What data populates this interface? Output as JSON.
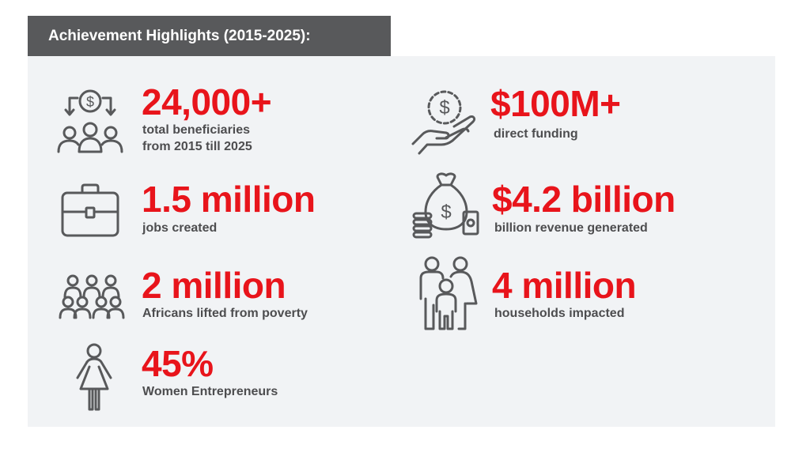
{
  "header": {
    "title": "Achievement Highlights (2015-2025):"
  },
  "stats": {
    "beneficiaries": {
      "value": "24,000+",
      "label_line1": "total beneficiaries",
      "label_line2": "from 2015 till 2025",
      "icon": "people-money-icon"
    },
    "funding": {
      "value": "$100M+",
      "label": "direct funding",
      "icon": "hand-coin-icon"
    },
    "jobs": {
      "value": "1.5 million",
      "label": "jobs created",
      "icon": "briefcase-icon"
    },
    "revenue": {
      "value": "$4.2 billion",
      "label": "billion revenue generated",
      "icon": "money-bag-icon"
    },
    "poverty": {
      "value": "2 million",
      "label": "Africans lifted from poverty",
      "icon": "crowd-icon"
    },
    "households": {
      "value": "4 million",
      "label": "households impacted",
      "icon": "family-icon"
    },
    "women": {
      "value": "45%",
      "label": "Women Entrepreneurs",
      "icon": "woman-icon"
    }
  },
  "colors": {
    "accent": "#e8141b",
    "header_bg": "#58595b",
    "panel_bg": "#f1f3f5",
    "label_text": "#4d4d4f",
    "icon_stroke": "#58595b"
  }
}
